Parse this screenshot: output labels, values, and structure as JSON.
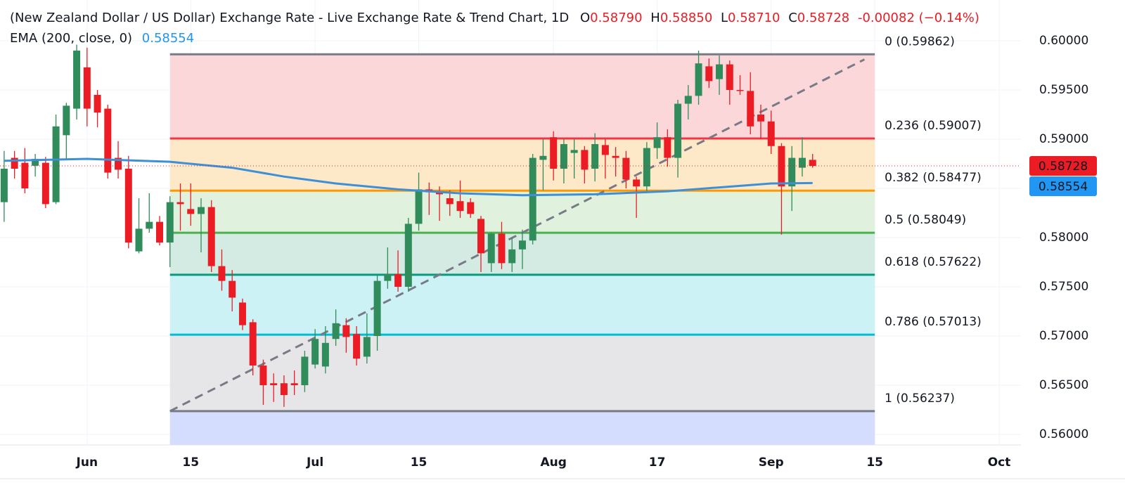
{
  "header": {
    "title": "(New Zealand Dollar / US Dollar) Exchange Rate - Live Exchange Rate & Trend Chart, 1D",
    "ohlc": [
      {
        "key": "O",
        "value": "0.58790"
      },
      {
        "key": "H",
        "value": "0.58850"
      },
      {
        "key": "L",
        "value": "0.58710"
      },
      {
        "key": "C",
        "value": "0.58728"
      }
    ],
    "change": "-0.00082 (−0.14%)",
    "indicator": "EMA (200, close, 0)",
    "indicator_value": "0.58554"
  },
  "chart_data": {
    "type": "candlestick",
    "up_color": "#308c5a",
    "down_color": "#eb1c24",
    "grid": true,
    "xlim": [
      -0.4,
      98.1
    ],
    "xticks": [
      {
        "value": 8,
        "label": "Jun"
      },
      {
        "value": 18,
        "label": "15"
      },
      {
        "value": 30,
        "label": "Jul"
      },
      {
        "value": 40,
        "label": "15"
      },
      {
        "value": 53,
        "label": "Aug"
      },
      {
        "value": 63,
        "label": "17"
      },
      {
        "value": 74,
        "label": "Sep"
      },
      {
        "value": 84,
        "label": "15"
      },
      {
        "value": 96,
        "label": "Oct"
      }
    ],
    "ylim": [
      0.55893,
      0.60414
    ],
    "yticks": [
      {
        "value": 0.56,
        "label": "0.56000"
      },
      {
        "value": 0.565,
        "label": "0.56500"
      },
      {
        "value": 0.57,
        "label": "0.57000"
      },
      {
        "value": 0.575,
        "label": "0.57500"
      },
      {
        "value": 0.58,
        "label": "0.58000"
      },
      {
        "value": 0.585,
        "label": "0.58500"
      },
      {
        "value": 0.59,
        "label": "0.59000"
      },
      {
        "value": 0.595,
        "label": "0.59500"
      },
      {
        "value": 0.6,
        "label": "0.60000"
      }
    ],
    "candles": {
      "open": [
        0.5836,
        0.5881,
        0.5876,
        0.5873,
        0.5876,
        0.5836,
        0.5904,
        0.5931,
        0.5973,
        0.5945,
        0.5931,
        0.5881,
        0.587,
        0.5786,
        0.5809,
        0.5816,
        0.5795,
        0.5836,
        0.5829,
        0.5824,
        0.5831,
        0.5771,
        0.5756,
        0.5734,
        0.5714,
        0.567,
        0.5652,
        0.5652,
        0.5652,
        0.565,
        0.5671,
        0.5669,
        0.5697,
        0.5711,
        0.5702,
        0.5679,
        0.57,
        0.5756,
        0.5763,
        0.575,
        0.5814,
        0.5849,
        0.5847,
        0.584,
        0.5837,
        0.5836,
        0.5819,
        0.5774,
        0.5804,
        0.5774,
        0.5788,
        0.5797,
        0.5879,
        0.5902,
        0.587,
        0.5886,
        0.5889,
        0.587,
        0.5894,
        0.5883,
        0.5881,
        0.5859,
        0.5852,
        0.5891,
        0.5902,
        0.5881,
        0.5936,
        0.5944,
        0.5974,
        0.5961,
        0.5976,
        0.595,
        0.5949,
        0.5925,
        0.5918,
        0.5893,
        0.5852,
        0.5871,
        0.5879
      ],
      "high": [
        0.5888,
        0.5888,
        0.5891,
        0.5885,
        0.5882,
        0.5925,
        0.5937,
        0.5996,
        0.5993,
        0.595,
        0.5935,
        0.5898,
        0.5883,
        0.584,
        0.5845,
        0.5822,
        0.5842,
        0.5855,
        0.5855,
        0.584,
        0.5838,
        0.5788,
        0.5767,
        0.5738,
        0.5717,
        0.5676,
        0.5662,
        0.566,
        0.5665,
        0.5685,
        0.5707,
        0.571,
        0.5727,
        0.5718,
        0.571,
        0.5723,
        0.5762,
        0.579,
        0.5787,
        0.582,
        0.5866,
        0.5856,
        0.5852,
        0.5848,
        0.5858,
        0.584,
        0.5822,
        0.5805,
        0.5816,
        0.58,
        0.5808,
        0.5885,
        0.59,
        0.5908,
        0.59,
        0.59,
        0.5893,
        0.5906,
        0.59,
        0.5892,
        0.5888,
        0.5862,
        0.5897,
        0.5917,
        0.591,
        0.594,
        0.5955,
        0.599,
        0.5982,
        0.5985,
        0.598,
        0.5965,
        0.5968,
        0.5935,
        0.5929,
        0.5896,
        0.5893,
        0.5902,
        0.5885
      ],
      "low": [
        0.5816,
        0.586,
        0.5845,
        0.5862,
        0.583,
        0.5834,
        0.588,
        0.592,
        0.5913,
        0.5912,
        0.586,
        0.586,
        0.5789,
        0.5784,
        0.5805,
        0.5792,
        0.577,
        0.5807,
        0.5812,
        0.5785,
        0.5765,
        0.5746,
        0.5725,
        0.5706,
        0.566,
        0.563,
        0.5633,
        0.5628,
        0.564,
        0.5643,
        0.5667,
        0.5662,
        0.569,
        0.5683,
        0.567,
        0.5672,
        0.5685,
        0.5748,
        0.5745,
        0.5745,
        0.5807,
        0.5823,
        0.5817,
        0.5822,
        0.582,
        0.582,
        0.5765,
        0.5765,
        0.5768,
        0.5765,
        0.5768,
        0.5793,
        0.5848,
        0.5858,
        0.5855,
        0.586,
        0.5855,
        0.5857,
        0.586,
        0.5862,
        0.585,
        0.582,
        0.5845,
        0.588,
        0.5872,
        0.5861,
        0.592,
        0.5935,
        0.5952,
        0.5945,
        0.5935,
        0.5945,
        0.5905,
        0.59,
        0.5885,
        0.5803,
        0.5827,
        0.5862,
        0.5871
      ],
      "close": [
        0.587,
        0.587,
        0.585,
        0.588,
        0.5834,
        0.5913,
        0.5934,
        0.599,
        0.5931,
        0.5927,
        0.5866,
        0.5869,
        0.5795,
        0.5809,
        0.5816,
        0.5795,
        0.5836,
        0.5834,
        0.5824,
        0.5831,
        0.5771,
        0.5756,
        0.5739,
        0.5711,
        0.567,
        0.565,
        0.565,
        0.564,
        0.565,
        0.5679,
        0.5697,
        0.5693,
        0.5713,
        0.5699,
        0.5677,
        0.5699,
        0.5756,
        0.5763,
        0.575,
        0.5814,
        0.5849,
        0.5846,
        0.5844,
        0.5834,
        0.5827,
        0.5824,
        0.5784,
        0.5804,
        0.5774,
        0.5788,
        0.5797,
        0.5881,
        0.5883,
        0.587,
        0.5895,
        0.5889,
        0.5869,
        0.5895,
        0.5884,
        0.5881,
        0.5859,
        0.5852,
        0.5891,
        0.5902,
        0.5881,
        0.5936,
        0.5944,
        0.5977,
        0.5959,
        0.5976,
        0.595,
        0.5949,
        0.5913,
        0.5918,
        0.5893,
        0.5852,
        0.5881,
        0.5881,
        0.58728
      ]
    },
    "ema": {
      "color": "#3d8fd6",
      "x": [
        0,
        8,
        16,
        22,
        27,
        32,
        38,
        44,
        50,
        57,
        64,
        69,
        74,
        78
      ],
      "values": [
        0.5878,
        0.588,
        0.5877,
        0.5871,
        0.5862,
        0.5855,
        0.5849,
        0.5845,
        0.5843,
        0.5844,
        0.5847,
        0.5851,
        0.5855,
        0.58554
      ]
    },
    "fib": {
      "x": [
        16,
        84
      ],
      "levels": [
        {
          "label": "0 (0.59862)",
          "price": 0.59862,
          "color": "#787b86",
          "fill": "#fcd7da"
        },
        {
          "label": "0.236 (0.59007)",
          "price": 0.59007,
          "color": "#f23645",
          "fill": "#fde8c8"
        },
        {
          "label": "0.382 (0.58477)",
          "price": 0.58477,
          "color": "#ff9800",
          "fill": "#e0f2dd"
        },
        {
          "label": "0.5 (0.58049)",
          "price": 0.58049,
          "color": "#4caf50",
          "fill": "#d3ebe2"
        },
        {
          "label": "0.618 (0.57622)",
          "price": 0.57622,
          "color": "#089981",
          "fill": "#ccf2f5"
        },
        {
          "label": "0.786 (0.57013)",
          "price": 0.57013,
          "color": "#00bcd4",
          "fill": "#e6e6e8"
        },
        {
          "label": "1 (0.56237)",
          "price": 0.56237,
          "color": "#787b86",
          "fill": "#d4ddfd"
        }
      ]
    },
    "trendline": {
      "color": "#787b86",
      "x": [
        16,
        83
      ],
      "values": [
        0.56237,
        0.5981
      ]
    },
    "last_price_color": "#eb1c24"
  }
}
